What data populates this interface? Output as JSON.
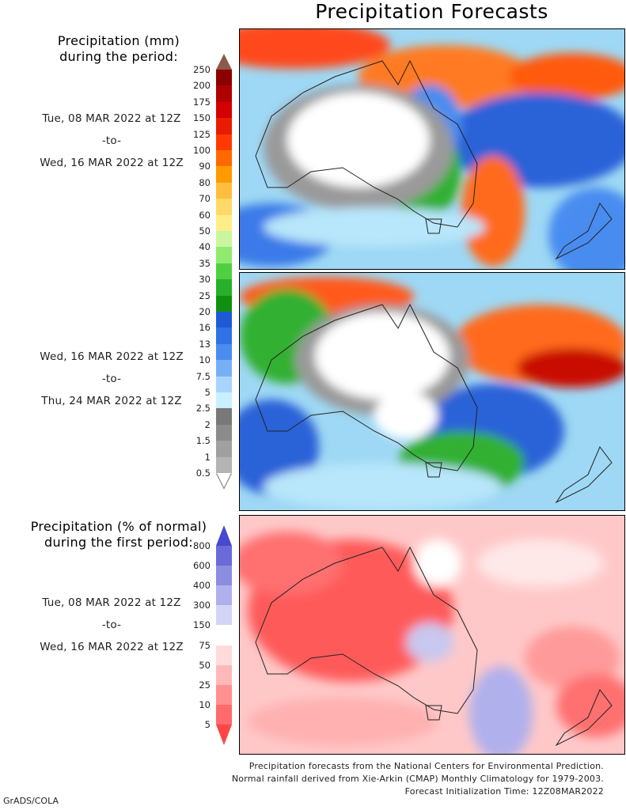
{
  "title": "Precipitation Forecasts",
  "panels": {
    "amount": {
      "heading_line1": "Precipitation (mm)",
      "heading_line2": "during the period:"
    },
    "anomaly": {
      "heading_line1": "Precipitation (% of normal)",
      "heading_line2": "during the first period:"
    }
  },
  "periods": {
    "first": {
      "start": "Tue, 08 MAR 2022 at 12Z",
      "sep": "-to-",
      "end": "Wed, 16 MAR 2022 at 12Z"
    },
    "second": {
      "start": "Wed, 16 MAR 2022 at 12Z",
      "sep": "-to-",
      "end": "Thu, 24 MAR 2022 at 12Z"
    },
    "third": {
      "start": "Tue, 08 MAR 2022 at 12Z",
      "sep": "-to-",
      "end": "Wed, 16 MAR 2022 at 12Z"
    }
  },
  "mm_scale": {
    "labels": [
      "250",
      "200",
      "175",
      "150",
      "125",
      "100",
      "90",
      "80",
      "70",
      "60",
      "50",
      "40",
      "35",
      "30",
      "25",
      "20",
      "16",
      "13",
      "10",
      "7.5",
      "5",
      "2.5",
      "2",
      "1.5",
      "1",
      "0.5"
    ],
    "colors": [
      "#8b5a4a",
      "#8c0000",
      "#b00000",
      "#d40000",
      "#e81c00",
      "#ff3a00",
      "#ff6a00",
      "#ff9a00",
      "#ffbe40",
      "#ffd866",
      "#ffee88",
      "#ccf5a0",
      "#90ea70",
      "#50d040",
      "#28b028",
      "#109010",
      "#1e5ad6",
      "#2e72e6",
      "#4a8cf0",
      "#78b0f8",
      "#a8d4ff",
      "#c8f0ff",
      "#787878",
      "#8c8c8c",
      "#a0a0a0",
      "#b4b4b4",
      "#ffffff"
    ]
  },
  "pct_scale": {
    "labels": [
      "800",
      "600",
      "400",
      "300",
      "150",
      "75",
      "50",
      "25",
      "10",
      "5"
    ],
    "colors": [
      "#4848d0",
      "#6a6ad8",
      "#8c8ce0",
      "#b0b0ec",
      "#d4d4f6",
      "#ffffff",
      "#ffdada",
      "#ffb8b8",
      "#ff9090",
      "#ff6a6a",
      "#ff4646"
    ]
  },
  "footer": {
    "line1": "Precipitation forecasts from the National Centers for Environmental Prediction.",
    "line2": "Normal rainfall derived from Xie-Arkin (CMAP) Monthly Climatology for 1979-2003.",
    "line3": "Forecast Initialization Time: 12Z08MAR2022"
  },
  "credit": "GrADS/COLA"
}
